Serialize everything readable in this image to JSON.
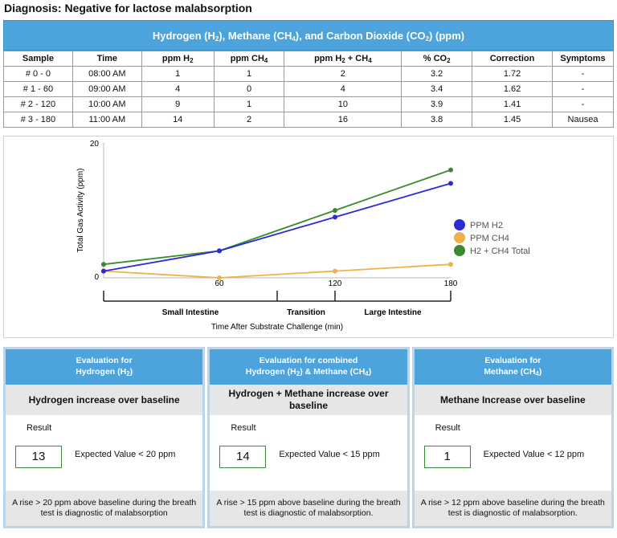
{
  "diagnosis": "Diagnosis: Negative for lactose malabsorption",
  "table": {
    "title_parts": [
      "Hydrogen (H",
      "2",
      "), Methane (CH",
      "4",
      "), and Carbon Dioxide (CO",
      "2",
      ") (ppm)"
    ],
    "headers": {
      "sample": "Sample",
      "time": "Time",
      "ppm_h2": "ppm H",
      "ppm_h2_sub": "2",
      "ppm_ch4": "ppm CH",
      "ppm_ch4_sub": "4",
      "sum_a": "ppm H",
      "sum_a_sub": "2",
      "sum_b": " + CH",
      "sum_b_sub": "4",
      "co2": "% CO",
      "co2_sub": "2",
      "correction": "Correction",
      "symptoms": "Symptoms"
    },
    "rows": [
      {
        "sample": "# 0 - 0",
        "time": "08:00 AM",
        "h2": "1",
        "ch4": "1",
        "sum": "2",
        "co2": "3.2",
        "correction": "1.72",
        "symptoms": "-"
      },
      {
        "sample": "# 1 - 60",
        "time": "09:00 AM",
        "h2": "4",
        "ch4": "0",
        "sum": "4",
        "co2": "3.4",
        "correction": "1.62",
        "symptoms": "-"
      },
      {
        "sample": "# 2 - 120",
        "time": "10:00 AM",
        "h2": "9",
        "ch4": "1",
        "sum": "10",
        "co2": "3.9",
        "correction": "1.41",
        "symptoms": "-"
      },
      {
        "sample": "# 3 - 180",
        "time": "11:00 AM",
        "h2": "14",
        "ch4": "2",
        "sum": "16",
        "co2": "3.8",
        "correction": "1.45",
        "symptoms": "Nausea"
      }
    ]
  },
  "chart_data": {
    "type": "line",
    "x": [
      0,
      60,
      120,
      180
    ],
    "xlim": [
      0,
      180
    ],
    "ylim": [
      0,
      20
    ],
    "y_ticks": [
      "0",
      "20"
    ],
    "x_ticks": [
      "60",
      "120",
      "180"
    ],
    "ylabel": "Total Gas Activity (ppm)",
    "xlabel": "Time After Substrate Challenge (min)",
    "regions": [
      "Small Intestine",
      "Transition",
      "Large Intestine"
    ],
    "legend_position": "right",
    "series": [
      {
        "name": "PPM H2",
        "color": "#2b2bd6",
        "values": [
          1,
          4,
          9,
          14
        ]
      },
      {
        "name": "PPM CH4",
        "color": "#f0b04a",
        "values": [
          1,
          0,
          1,
          2
        ]
      },
      {
        "name": "H2 + CH4 Total",
        "color": "#3a8a2e",
        "values": [
          2,
          4,
          10,
          16
        ]
      }
    ]
  },
  "cards": [
    {
      "head1": "Evaluation for",
      "head2": "Hydrogen (H",
      "head2_sub": "2",
      "head2_end": ")",
      "subtitle": "Hydrogen increase over baseline",
      "result_label": "Result",
      "result": "13",
      "expected": "Expected Value < 20 ppm",
      "foot1": "A rise > 20 ppm above baseline during the breath",
      "foot2": "test is diagnostic of malabsorption"
    },
    {
      "head1": "Evaluation for combined",
      "head2": "Hydrogen (H",
      "head2_sub": "2",
      "head2_end": ") & Methane (CH",
      "head2_sub2": "4",
      "head2_end2": ")",
      "subtitle": "Hydrogen + Methane increase over baseline",
      "result_label": "Result",
      "result": "14",
      "expected": "Expected Value < 15 ppm",
      "foot1": "A rise > 15 ppm above baseline during the breath",
      "foot2": "test is diagnostic of malabsorption."
    },
    {
      "head1": "Evaluation for",
      "head2": "Methane (CH",
      "head2_sub": "4",
      "head2_end": ")",
      "subtitle": "Methane Increase over baseline",
      "result_label": "Result",
      "result": "1",
      "expected": "Expected Value < 12 ppm",
      "foot1": "A rise > 12 ppm above baseline during the breath",
      "foot2": "test is diagnostic of malabsorption."
    }
  ]
}
